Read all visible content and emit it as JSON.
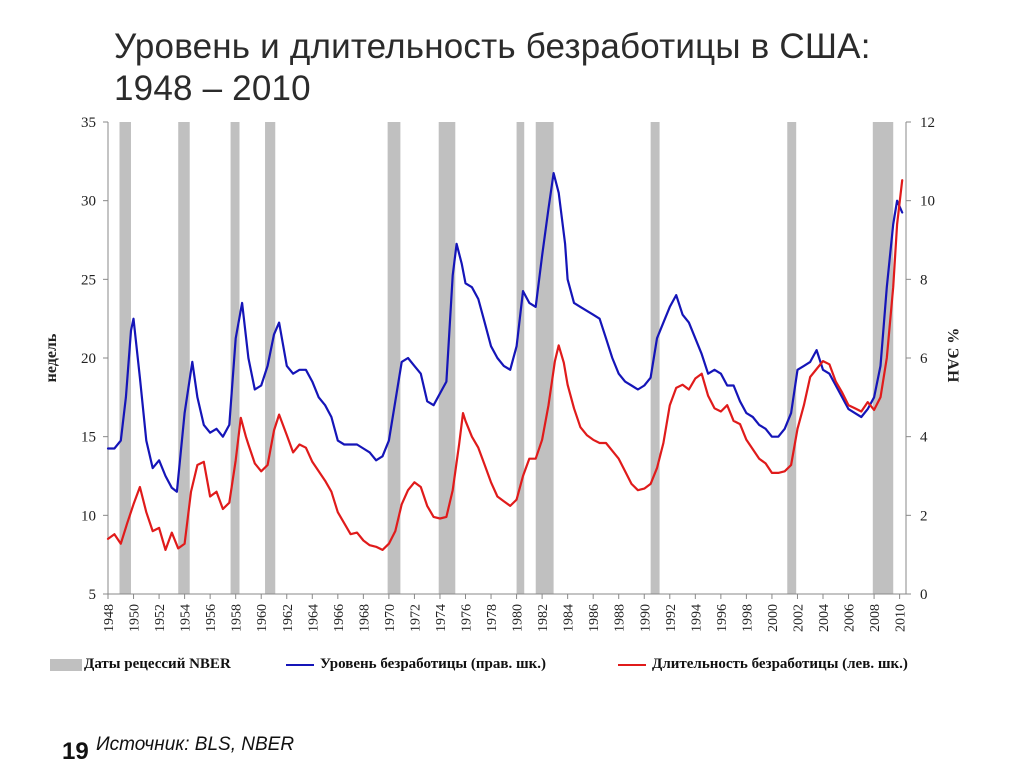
{
  "page": {
    "title_line1": "Уровень и длительность безработицы в США:",
    "title_line2": "1948 – 2010",
    "page_number": "19",
    "source": "Источник: BLS, NBER"
  },
  "legend": {
    "recession": "Даты рецессий NBER",
    "rate": "Уровень безработицы (прав. шк.)",
    "duration": "Длительность безработицы (лев. шк.)"
  },
  "chart_data": {
    "type": "line",
    "x_range": [
      1948,
      2010.5
    ],
    "left_axis": {
      "label": "недель",
      "min": 5,
      "max": 35,
      "ticks": [
        5,
        10,
        15,
        20,
        25,
        30,
        35
      ]
    },
    "right_axis": {
      "label": "% ЭАН",
      "min": 0,
      "max": 12,
      "ticks": [
        0,
        2,
        4,
        6,
        8,
        10,
        12
      ]
    },
    "x_ticks": [
      1948,
      1950,
      1952,
      1954,
      1956,
      1958,
      1960,
      1962,
      1964,
      1966,
      1968,
      1970,
      1972,
      1974,
      1976,
      1978,
      1980,
      1982,
      1984,
      1986,
      1988,
      1990,
      1992,
      1994,
      1996,
      1998,
      2000,
      2002,
      2004,
      2006,
      2008,
      2010
    ],
    "colors": {
      "recession": "#c0c0c0",
      "rate": "#1515b8",
      "duration": "#e01b1b",
      "axis": "#888888"
    },
    "recessions": [
      [
        1948.9,
        1949.8
      ],
      [
        1953.5,
        1954.4
      ],
      [
        1957.6,
        1958.3
      ],
      [
        1960.3,
        1961.1
      ],
      [
        1969.9,
        1970.9
      ],
      [
        1973.9,
        1975.2
      ],
      [
        1980.0,
        1980.6
      ],
      [
        1981.5,
        1982.9
      ],
      [
        1990.5,
        1991.2
      ],
      [
        2001.2,
        2001.9
      ],
      [
        2007.9,
        2009.5
      ]
    ],
    "series": [
      {
        "name": "Уровень безработицы (прав. шк.)",
        "axis": "right",
        "points": [
          [
            1948.0,
            3.7
          ],
          [
            1948.5,
            3.7
          ],
          [
            1949.0,
            3.9
          ],
          [
            1949.4,
            5.0
          ],
          [
            1949.8,
            6.7
          ],
          [
            1950.0,
            7.0
          ],
          [
            1950.5,
            5.5
          ],
          [
            1951.0,
            3.9
          ],
          [
            1951.5,
            3.2
          ],
          [
            1952.0,
            3.4
          ],
          [
            1952.5,
            3.0
          ],
          [
            1953.0,
            2.7
          ],
          [
            1953.4,
            2.6
          ],
          [
            1954.0,
            4.6
          ],
          [
            1954.6,
            5.9
          ],
          [
            1955.0,
            5.0
          ],
          [
            1955.5,
            4.3
          ],
          [
            1956.0,
            4.1
          ],
          [
            1956.5,
            4.2
          ],
          [
            1957.0,
            4.0
          ],
          [
            1957.5,
            4.3
          ],
          [
            1958.0,
            6.5
          ],
          [
            1958.5,
            7.4
          ],
          [
            1959.0,
            6.0
          ],
          [
            1959.5,
            5.2
          ],
          [
            1960.0,
            5.3
          ],
          [
            1960.5,
            5.8
          ],
          [
            1961.0,
            6.6
          ],
          [
            1961.4,
            6.9
          ],
          [
            1962.0,
            5.8
          ],
          [
            1962.5,
            5.6
          ],
          [
            1963.0,
            5.7
          ],
          [
            1963.5,
            5.7
          ],
          [
            1964.0,
            5.4
          ],
          [
            1964.5,
            5.0
          ],
          [
            1965.0,
            4.8
          ],
          [
            1965.5,
            4.5
          ],
          [
            1966.0,
            3.9
          ],
          [
            1966.5,
            3.8
          ],
          [
            1967.0,
            3.8
          ],
          [
            1967.5,
            3.8
          ],
          [
            1968.0,
            3.7
          ],
          [
            1968.5,
            3.6
          ],
          [
            1969.0,
            3.4
          ],
          [
            1969.5,
            3.5
          ],
          [
            1970.0,
            3.9
          ],
          [
            1970.5,
            4.9
          ],
          [
            1971.0,
            5.9
          ],
          [
            1971.5,
            6.0
          ],
          [
            1972.0,
            5.8
          ],
          [
            1972.5,
            5.6
          ],
          [
            1973.0,
            4.9
          ],
          [
            1973.5,
            4.8
          ],
          [
            1974.0,
            5.1
          ],
          [
            1974.5,
            5.4
          ],
          [
            1975.0,
            8.1
          ],
          [
            1975.3,
            8.9
          ],
          [
            1975.7,
            8.4
          ],
          [
            1976.0,
            7.9
          ],
          [
            1976.5,
            7.8
          ],
          [
            1977.0,
            7.5
          ],
          [
            1977.5,
            6.9
          ],
          [
            1978.0,
            6.3
          ],
          [
            1978.5,
            6.0
          ],
          [
            1979.0,
            5.8
          ],
          [
            1979.5,
            5.7
          ],
          [
            1980.0,
            6.3
          ],
          [
            1980.5,
            7.7
          ],
          [
            1981.0,
            7.4
          ],
          [
            1981.5,
            7.3
          ],
          [
            1982.0,
            8.6
          ],
          [
            1982.5,
            9.8
          ],
          [
            1982.9,
            10.7
          ],
          [
            1983.3,
            10.2
          ],
          [
            1983.8,
            8.9
          ],
          [
            1984.0,
            8.0
          ],
          [
            1984.5,
            7.4
          ],
          [
            1985.0,
            7.3
          ],
          [
            1985.5,
            7.2
          ],
          [
            1986.0,
            7.1
          ],
          [
            1986.5,
            7.0
          ],
          [
            1987.0,
            6.5
          ],
          [
            1987.5,
            6.0
          ],
          [
            1988.0,
            5.6
          ],
          [
            1988.5,
            5.4
          ],
          [
            1989.0,
            5.3
          ],
          [
            1989.5,
            5.2
          ],
          [
            1990.0,
            5.3
          ],
          [
            1990.5,
            5.5
          ],
          [
            1991.0,
            6.5
          ],
          [
            1991.5,
            6.9
          ],
          [
            1992.0,
            7.3
          ],
          [
            1992.5,
            7.6
          ],
          [
            1993.0,
            7.1
          ],
          [
            1993.5,
            6.9
          ],
          [
            1994.0,
            6.5
          ],
          [
            1994.5,
            6.1
          ],
          [
            1995.0,
            5.6
          ],
          [
            1995.5,
            5.7
          ],
          [
            1996.0,
            5.6
          ],
          [
            1996.5,
            5.3
          ],
          [
            1997.0,
            5.3
          ],
          [
            1997.5,
            4.9
          ],
          [
            1998.0,
            4.6
          ],
          [
            1998.5,
            4.5
          ],
          [
            1999.0,
            4.3
          ],
          [
            1999.5,
            4.2
          ],
          [
            2000.0,
            4.0
          ],
          [
            2000.5,
            4.0
          ],
          [
            2001.0,
            4.2
          ],
          [
            2001.5,
            4.6
          ],
          [
            2002.0,
            5.7
          ],
          [
            2002.5,
            5.8
          ],
          [
            2003.0,
            5.9
          ],
          [
            2003.5,
            6.2
          ],
          [
            2004.0,
            5.7
          ],
          [
            2004.5,
            5.6
          ],
          [
            2005.0,
            5.3
          ],
          [
            2005.5,
            5.0
          ],
          [
            2006.0,
            4.7
          ],
          [
            2006.5,
            4.6
          ],
          [
            2007.0,
            4.5
          ],
          [
            2007.5,
            4.7
          ],
          [
            2008.0,
            5.0
          ],
          [
            2008.5,
            5.8
          ],
          [
            2009.0,
            7.8
          ],
          [
            2009.5,
            9.4
          ],
          [
            2009.8,
            10.0
          ],
          [
            2010.2,
            9.7
          ]
        ]
      },
      {
        "name": "Длительность безработицы (лев. шк.)",
        "axis": "left",
        "points": [
          [
            1948.0,
            8.5
          ],
          [
            1948.5,
            8.8
          ],
          [
            1949.0,
            8.2
          ],
          [
            1949.5,
            9.5
          ],
          [
            1950.0,
            10.7
          ],
          [
            1950.5,
            11.8
          ],
          [
            1951.0,
            10.2
          ],
          [
            1951.5,
            9.0
          ],
          [
            1952.0,
            9.2
          ],
          [
            1952.5,
            7.8
          ],
          [
            1953.0,
            8.9
          ],
          [
            1953.5,
            7.9
          ],
          [
            1954.0,
            8.2
          ],
          [
            1954.5,
            11.5
          ],
          [
            1955.0,
            13.2
          ],
          [
            1955.5,
            13.4
          ],
          [
            1956.0,
            11.2
          ],
          [
            1956.5,
            11.5
          ],
          [
            1957.0,
            10.4
          ],
          [
            1957.5,
            10.8
          ],
          [
            1958.0,
            13.5
          ],
          [
            1958.4,
            16.2
          ],
          [
            1958.8,
            15.0
          ],
          [
            1959.0,
            14.5
          ],
          [
            1959.5,
            13.3
          ],
          [
            1960.0,
            12.8
          ],
          [
            1960.5,
            13.2
          ],
          [
            1961.0,
            15.4
          ],
          [
            1961.4,
            16.4
          ],
          [
            1962.0,
            15.1
          ],
          [
            1962.5,
            14.0
          ],
          [
            1963.0,
            14.5
          ],
          [
            1963.5,
            14.3
          ],
          [
            1964.0,
            13.4
          ],
          [
            1964.5,
            12.8
          ],
          [
            1965.0,
            12.2
          ],
          [
            1965.5,
            11.5
          ],
          [
            1966.0,
            10.2
          ],
          [
            1966.5,
            9.5
          ],
          [
            1967.0,
            8.8
          ],
          [
            1967.5,
            8.9
          ],
          [
            1968.0,
            8.4
          ],
          [
            1968.5,
            8.1
          ],
          [
            1969.0,
            8.0
          ],
          [
            1969.5,
            7.8
          ],
          [
            1970.0,
            8.2
          ],
          [
            1970.5,
            9.0
          ],
          [
            1971.0,
            10.7
          ],
          [
            1971.5,
            11.6
          ],
          [
            1972.0,
            12.1
          ],
          [
            1972.5,
            11.8
          ],
          [
            1973.0,
            10.6
          ],
          [
            1973.5,
            9.9
          ],
          [
            1974.0,
            9.8
          ],
          [
            1974.5,
            9.9
          ],
          [
            1975.0,
            11.6
          ],
          [
            1975.5,
            14.5
          ],
          [
            1975.8,
            16.5
          ],
          [
            1976.0,
            16.0
          ],
          [
            1976.5,
            15.0
          ],
          [
            1977.0,
            14.3
          ],
          [
            1977.5,
            13.2
          ],
          [
            1978.0,
            12.1
          ],
          [
            1978.5,
            11.2
          ],
          [
            1979.0,
            10.9
          ],
          [
            1979.5,
            10.6
          ],
          [
            1980.0,
            11.0
          ],
          [
            1980.5,
            12.5
          ],
          [
            1981.0,
            13.6
          ],
          [
            1981.5,
            13.6
          ],
          [
            1982.0,
            14.8
          ],
          [
            1982.5,
            17.0
          ],
          [
            1983.0,
            19.8
          ],
          [
            1983.3,
            20.8
          ],
          [
            1983.7,
            19.7
          ],
          [
            1984.0,
            18.3
          ],
          [
            1984.5,
            16.8
          ],
          [
            1985.0,
            15.6
          ],
          [
            1985.5,
            15.1
          ],
          [
            1986.0,
            14.8
          ],
          [
            1986.5,
            14.6
          ],
          [
            1987.0,
            14.6
          ],
          [
            1987.5,
            14.1
          ],
          [
            1988.0,
            13.6
          ],
          [
            1988.5,
            12.8
          ],
          [
            1989.0,
            12.0
          ],
          [
            1989.5,
            11.6
          ],
          [
            1990.0,
            11.7
          ],
          [
            1990.5,
            12.0
          ],
          [
            1991.0,
            13.0
          ],
          [
            1991.5,
            14.6
          ],
          [
            1992.0,
            17.0
          ],
          [
            1992.5,
            18.1
          ],
          [
            1993.0,
            18.3
          ],
          [
            1993.5,
            18.0
          ],
          [
            1994.0,
            18.7
          ],
          [
            1994.5,
            19.0
          ],
          [
            1995.0,
            17.6
          ],
          [
            1995.5,
            16.8
          ],
          [
            1996.0,
            16.6
          ],
          [
            1996.5,
            17.0
          ],
          [
            1997.0,
            16.0
          ],
          [
            1997.5,
            15.8
          ],
          [
            1998.0,
            14.8
          ],
          [
            1998.5,
            14.2
          ],
          [
            1999.0,
            13.6
          ],
          [
            1999.5,
            13.3
          ],
          [
            2000.0,
            12.7
          ],
          [
            2000.5,
            12.7
          ],
          [
            2001.0,
            12.8
          ],
          [
            2001.5,
            13.2
          ],
          [
            2002.0,
            15.5
          ],
          [
            2002.5,
            17.0
          ],
          [
            2003.0,
            18.8
          ],
          [
            2003.5,
            19.3
          ],
          [
            2004.0,
            19.8
          ],
          [
            2004.5,
            19.6
          ],
          [
            2005.0,
            18.5
          ],
          [
            2005.5,
            17.8
          ],
          [
            2006.0,
            17.0
          ],
          [
            2006.5,
            16.8
          ],
          [
            2007.0,
            16.6
          ],
          [
            2007.5,
            17.2
          ],
          [
            2008.0,
            16.7
          ],
          [
            2008.5,
            17.5
          ],
          [
            2009.0,
            20.0
          ],
          [
            2009.5,
            24.5
          ],
          [
            2009.8,
            28.5
          ],
          [
            2010.2,
            31.3
          ]
        ]
      }
    ]
  }
}
